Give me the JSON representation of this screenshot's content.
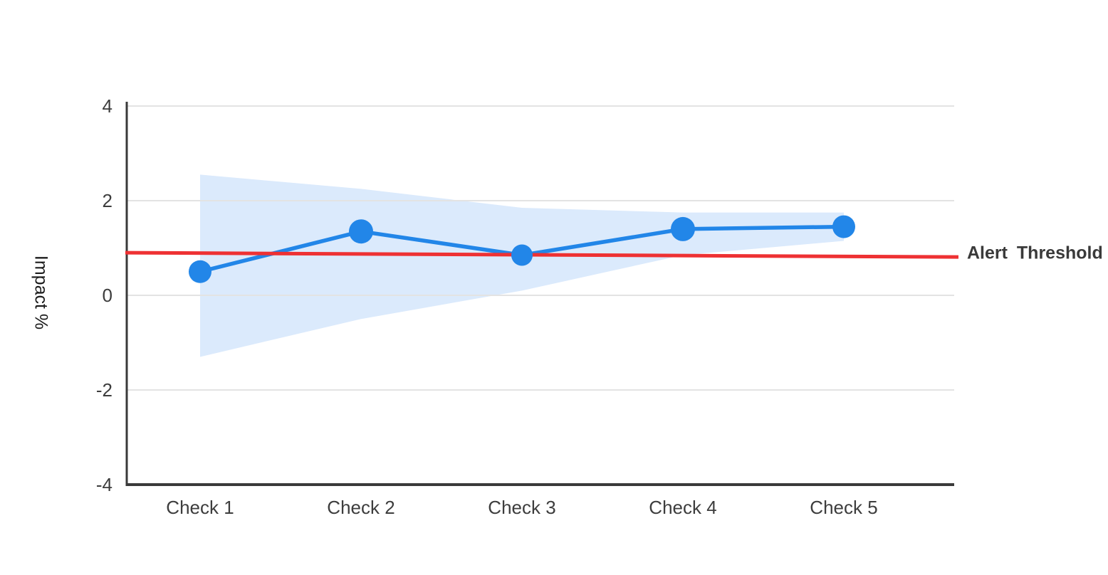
{
  "chart_data": {
    "type": "line",
    "title": "",
    "categories": [
      "Check 1",
      "Check 2",
      "Check 3",
      "Check 4",
      "Check 5"
    ],
    "series": [
      {
        "name": "Impact",
        "values": [
          0.5,
          1.35,
          0.85,
          1.4,
          1.45
        ]
      }
    ],
    "confidence_band": {
      "upper": [
        2.55,
        2.25,
        1.85,
        1.75,
        1.75
      ],
      "lower": [
        -1.3,
        -0.5,
        0.1,
        0.85,
        1.15
      ]
    },
    "threshold": {
      "label": "Alert Threshold",
      "value_start": 0.9,
      "value_end": 0.81
    },
    "ylabel": "Impact %",
    "xlabel": "",
    "ylim": [
      -4,
      4
    ],
    "yticks": [
      4,
      2,
      0,
      -2,
      -4
    ],
    "grid": true,
    "legend": "none",
    "colors": {
      "line": "#2286e8",
      "marker": "#2286e8",
      "band": "#dbeafc",
      "threshold": "#ee3133",
      "grid": "#e3e3e3",
      "axis": "#3a3a3a",
      "tick_text": "#3d3d3d"
    }
  }
}
